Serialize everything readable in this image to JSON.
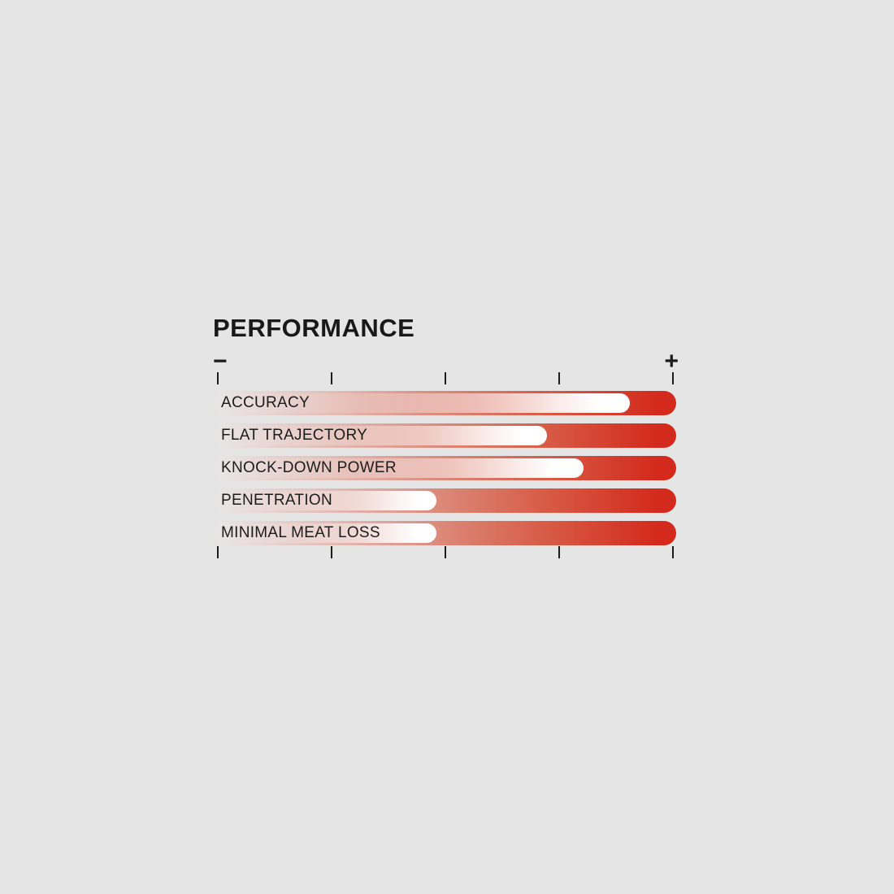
{
  "page": {
    "background_color": "#e6e5e5"
  },
  "chart_data": {
    "type": "bar",
    "orientation": "horizontal",
    "title": "PERFORMANCE",
    "categories": [
      "ACCURACY",
      "FLAT TRAJECTORY",
      "KNOCK-DOWN POWER",
      "PENETRATION",
      "MINIMAL MEAT LOSS"
    ],
    "values": [
      90,
      72,
      80,
      48,
      48
    ],
    "value_range": [
      0,
      100
    ],
    "axis": {
      "min_label": "−",
      "max_label": "+",
      "tick_count": 5,
      "gridlines": false,
      "tick_rows": [
        "top",
        "bottom"
      ]
    },
    "colors": {
      "bar_red": "#d32a1d",
      "bar_fade_start": "#e9e7e6",
      "marker_white": "#ffffff",
      "text": "#1c1c1c",
      "background": "#e6e5e5"
    }
  }
}
